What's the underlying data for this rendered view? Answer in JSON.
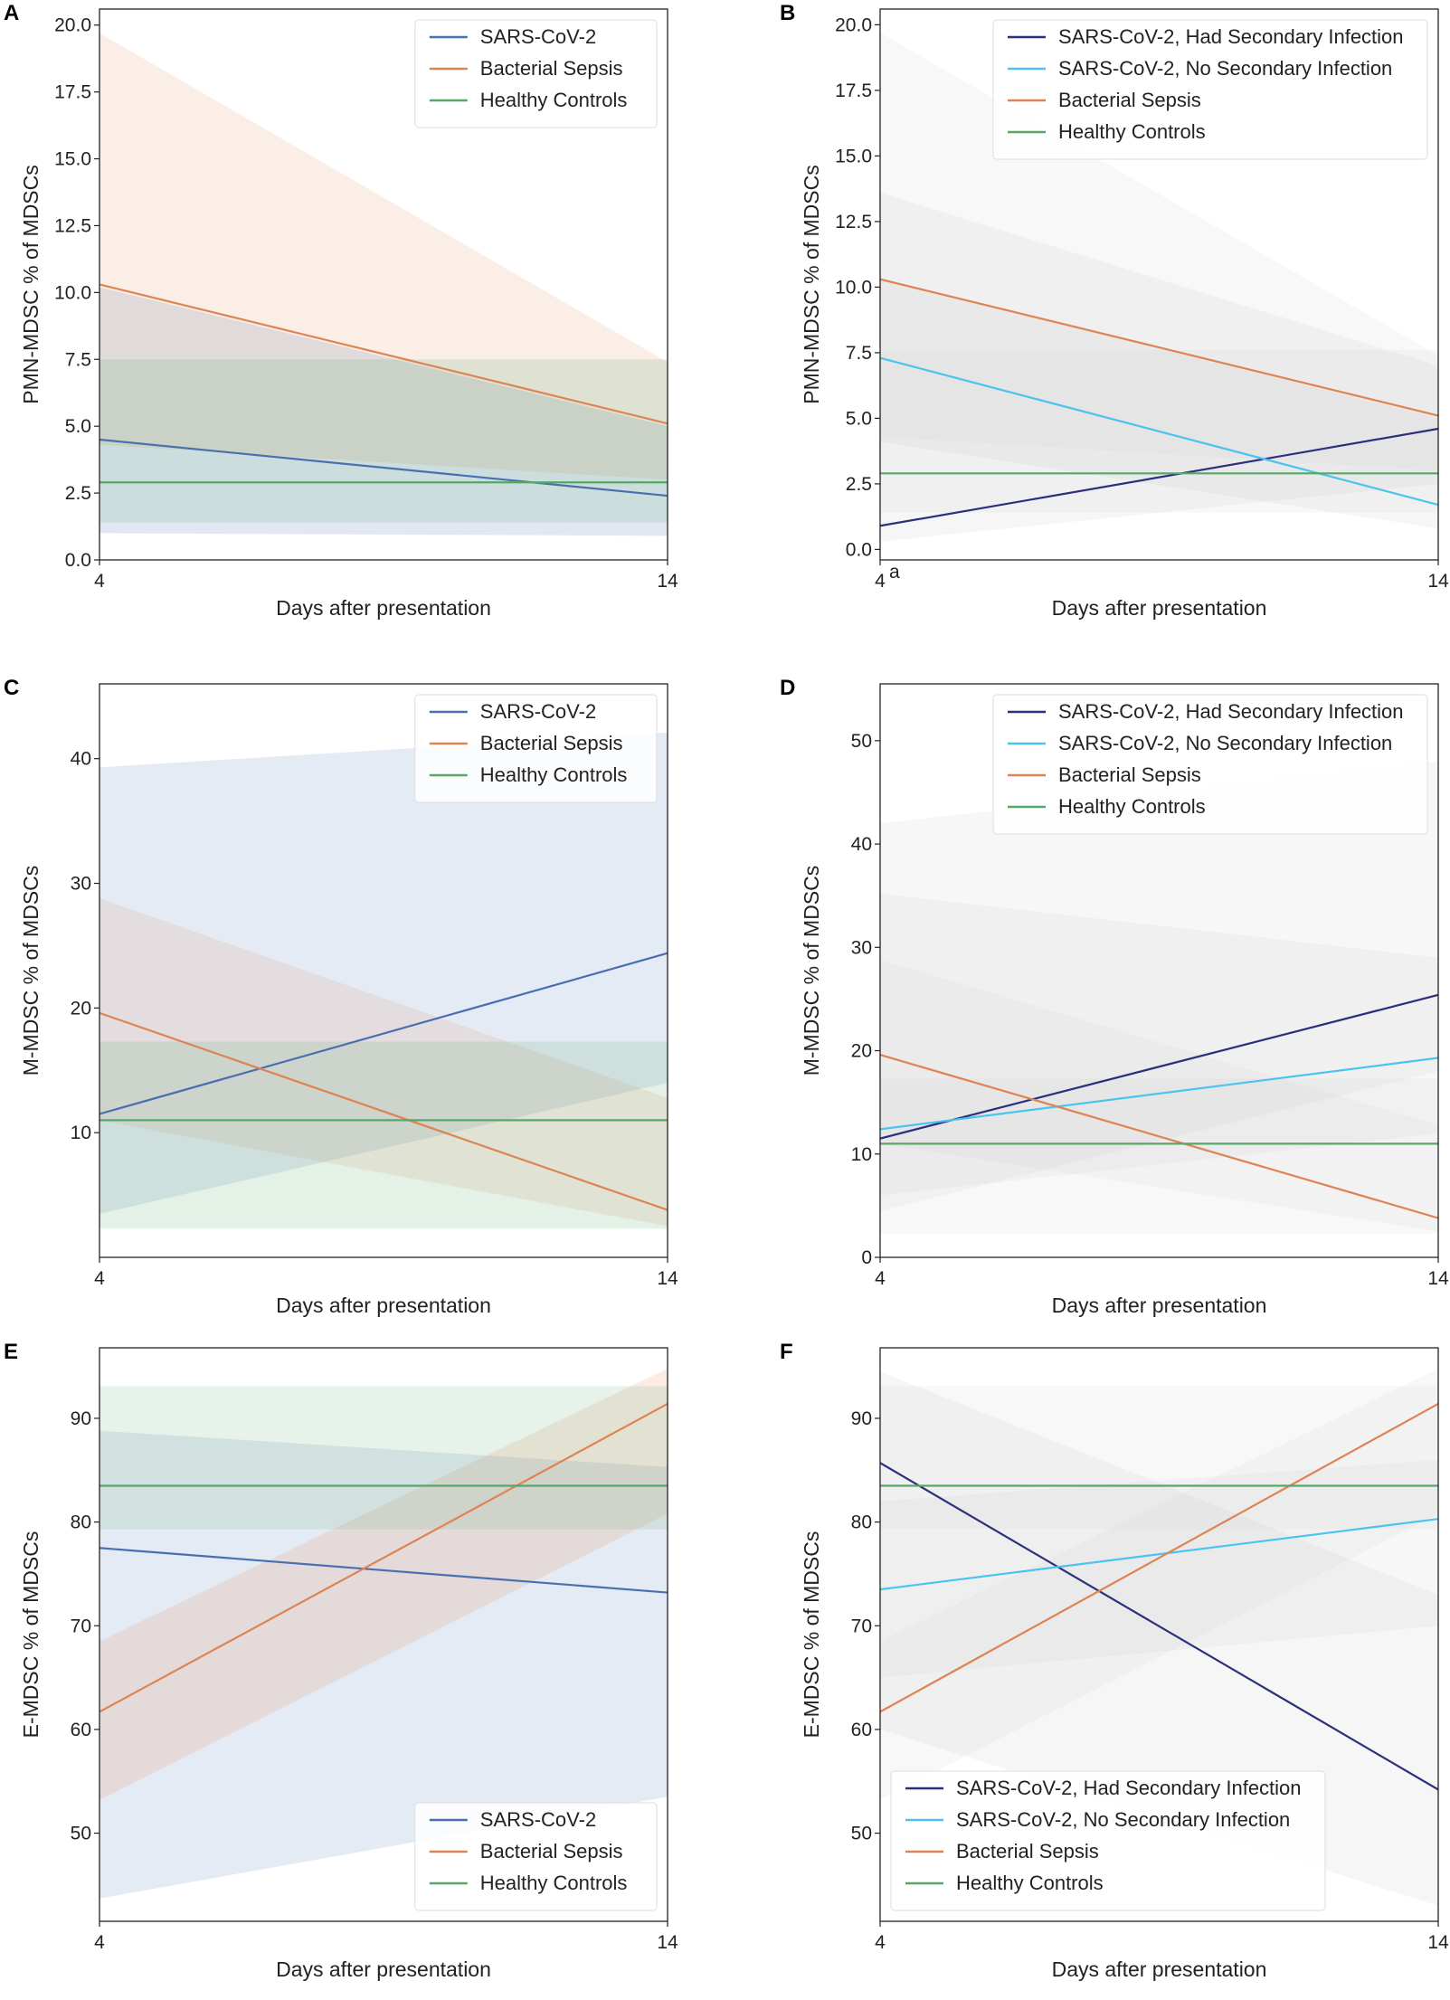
{
  "figure": {
    "colors": {
      "sars": "#4a6fb0",
      "sepsis": "#dd8452",
      "healthy": "#55a868",
      "had_secondary": "#2a2f7e",
      "no_secondary": "#4cc3ee",
      "neutral_band": "#cccccc"
    }
  },
  "chart_data": [
    {
      "panel": "A",
      "type": "line",
      "xlabel": "Days after presentation",
      "ylabel": "PMN-MDSC % of MDSCs",
      "x": [
        4,
        14
      ],
      "xticks": [
        "4",
        "14"
      ],
      "ylim": [
        0,
        20.6
      ],
      "yticks": [
        0,
        2.5,
        5,
        7.5,
        10,
        12.5,
        15,
        17.5,
        20
      ],
      "ytick_labels": [
        "0.0",
        "2.5",
        "5.0",
        "7.5",
        "10.0",
        "12.5",
        "15.0",
        "17.5",
        "20.0"
      ],
      "legend": "top-right",
      "series": [
        {
          "name": "SARS-CoV-2",
          "color": "sars",
          "values": [
            4.5,
            2.4
          ],
          "band_low": [
            1.0,
            0.9
          ],
          "band_high": [
            10.2,
            5.0
          ],
          "band_color": "sars",
          "band_opacity": 0.16
        },
        {
          "name": "Bacterial Sepsis",
          "color": "sepsis",
          "values": [
            10.3,
            5.1
          ],
          "band_low": [
            4.3,
            3.0
          ],
          "band_high": [
            19.7,
            7.4
          ],
          "band_color": "sepsis",
          "band_opacity": 0.14
        },
        {
          "name": "Healthy Controls",
          "color": "healthy",
          "values": [
            2.9,
            2.9
          ],
          "band_low": [
            1.4,
            1.4
          ],
          "band_high": [
            7.5,
            7.5
          ],
          "band_color": "healthy",
          "band_opacity": 0.16
        }
      ]
    },
    {
      "panel": "B",
      "type": "line",
      "xlabel": "Days after presentation",
      "ylabel": "PMN-MDSC % of MDSCs",
      "x": [
        4,
        14
      ],
      "xticks": [
        "4",
        "14"
      ],
      "xtick_note": "a",
      "ylim": [
        -0.4,
        20.6
      ],
      "yticks": [
        0,
        2.5,
        5,
        7.5,
        10,
        12.5,
        15,
        17.5,
        20
      ],
      "ytick_labels": [
        "0.0",
        "2.5",
        "5.0",
        "7.5",
        "10.0",
        "12.5",
        "15.0",
        "17.5",
        "20.0"
      ],
      "legend": "top-right",
      "series": [
        {
          "name": "SARS-CoV-2, Had Secondary Infection",
          "color": "had_secondary",
          "values": [
            0.9,
            4.6
          ],
          "band_low": [
            0.3,
            2.5
          ],
          "band_high": [
            13.6,
            7.0
          ],
          "band_color": "neutral_band",
          "band_opacity": 0.18
        },
        {
          "name": "SARS-CoV-2, No Secondary Infection",
          "color": "no_secondary",
          "values": [
            7.3,
            1.7
          ],
          "band_low": [
            4.1,
            0.8
          ],
          "band_high": [
            10.3,
            5.0
          ],
          "band_color": "neutral_band",
          "band_opacity": 0.18
        },
        {
          "name": "Bacterial Sepsis",
          "color": "sepsis",
          "values": [
            10.3,
            5.1
          ],
          "band_low": [
            4.3,
            3.0
          ],
          "band_high": [
            19.7,
            7.4
          ],
          "band_color": "neutral_band",
          "band_opacity": 0.14
        },
        {
          "name": "Healthy Controls",
          "color": "healthy",
          "values": [
            2.9,
            2.9
          ],
          "band_low": [
            1.4,
            1.4
          ],
          "band_high": [
            7.6,
            7.6
          ],
          "band_color": "neutral_band",
          "band_opacity": 0.14
        }
      ]
    },
    {
      "panel": "C",
      "type": "line",
      "xlabel": "Days after presentation",
      "ylabel": "M-MDSC % of MDSCs",
      "x": [
        4,
        14
      ],
      "xticks": [
        "4",
        "14"
      ],
      "ylim": [
        0,
        46
      ],
      "yticks": [
        10,
        20,
        30,
        40
      ],
      "ytick_labels": [
        "10",
        "20",
        "30",
        "40"
      ],
      "legend": "top-right",
      "series": [
        {
          "name": "SARS-CoV-2",
          "color": "sars",
          "values": [
            11.5,
            24.4
          ],
          "band_low": [
            3.5,
            14.0
          ],
          "band_high": [
            39.3,
            42.1
          ],
          "band_color": "sars",
          "band_opacity": 0.14
        },
        {
          "name": "Bacterial Sepsis",
          "color": "sepsis",
          "values": [
            19.6,
            3.8
          ],
          "band_low": [
            11.0,
            2.5
          ],
          "band_high": [
            28.8,
            12.8
          ],
          "band_color": "sepsis",
          "band_opacity": 0.13
        },
        {
          "name": "Healthy Controls",
          "color": "healthy",
          "values": [
            11.0,
            11.0
          ],
          "band_low": [
            2.3,
            2.3
          ],
          "band_high": [
            17.3,
            17.3
          ],
          "band_color": "healthy",
          "band_opacity": 0.16
        }
      ]
    },
    {
      "panel": "D",
      "type": "line",
      "xlabel": "Days after presentation",
      "ylabel": "M-MDSC % of MDSCs",
      "x": [
        4,
        14
      ],
      "xticks": [
        "4",
        "14"
      ],
      "ylim": [
        0,
        55.5
      ],
      "yticks": [
        0,
        10,
        20,
        30,
        40,
        50
      ],
      "ytick_labels": [
        "0",
        "10",
        "20",
        "30",
        "40",
        "50"
      ],
      "legend": "top-right",
      "series": [
        {
          "name": "SARS-CoV-2, Had Secondary Infection",
          "color": "had_secondary",
          "values": [
            11.5,
            25.4
          ],
          "band_low": [
            4.5,
            18.0
          ],
          "band_high": [
            42.0,
            48.0
          ],
          "band_color": "neutral_band",
          "band_opacity": 0.16
        },
        {
          "name": "SARS-CoV-2, No Secondary Infection",
          "color": "no_secondary",
          "values": [
            12.4,
            19.3
          ],
          "band_low": [
            6.0,
            12.0
          ],
          "band_high": [
            35.2,
            29.0
          ],
          "band_color": "neutral_band",
          "band_opacity": 0.16
        },
        {
          "name": "Bacterial Sepsis",
          "color": "sepsis",
          "values": [
            19.6,
            3.8
          ],
          "band_low": [
            11.0,
            2.5
          ],
          "band_high": [
            28.8,
            12.8
          ],
          "band_color": "neutral_band",
          "band_opacity": 0.14
        },
        {
          "name": "Healthy Controls",
          "color": "healthy",
          "values": [
            11.0,
            11.0
          ],
          "band_low": [
            2.3,
            2.3
          ],
          "band_high": [
            17.3,
            17.3
          ],
          "band_color": "neutral_band",
          "band_opacity": 0.14
        }
      ]
    },
    {
      "panel": "E",
      "type": "line",
      "xlabel": "Days after presentation",
      "ylabel": "E-MDSC % of MDSCs",
      "x": [
        4,
        14
      ],
      "xticks": [
        "4",
        "14"
      ],
      "ylim": [
        41.5,
        96.8
      ],
      "yticks": [
        50,
        60,
        70,
        80,
        90
      ],
      "ytick_labels": [
        "50",
        "60",
        "70",
        "80",
        "90"
      ],
      "legend": "bottom-right",
      "series": [
        {
          "name": "SARS-CoV-2",
          "color": "sars",
          "values": [
            77.5,
            73.2
          ],
          "band_low": [
            43.7,
            53.5
          ],
          "band_high": [
            88.8,
            85.3
          ],
          "band_color": "sars",
          "band_opacity": 0.14
        },
        {
          "name": "Bacterial Sepsis",
          "color": "sepsis",
          "values": [
            61.7,
            91.4
          ],
          "band_low": [
            53.2,
            80.8
          ],
          "band_high": [
            68.5,
            94.8
          ],
          "band_color": "sepsis",
          "band_opacity": 0.16
        },
        {
          "name": "Healthy Controls",
          "color": "healthy",
          "values": [
            83.5,
            83.5
          ],
          "band_low": [
            79.3,
            79.3
          ],
          "band_high": [
            93.1,
            93.1
          ],
          "band_color": "healthy",
          "band_opacity": 0.14
        }
      ]
    },
    {
      "panel": "F",
      "type": "line",
      "xlabel": "Days after presentation",
      "ylabel": "E-MDSC % of MDSCs",
      "x": [
        4,
        14
      ],
      "xticks": [
        "4",
        "14"
      ],
      "ylim": [
        41.5,
        96.8
      ],
      "yticks": [
        50,
        60,
        70,
        80,
        90
      ],
      "ytick_labels": [
        "50",
        "60",
        "70",
        "80",
        "90"
      ],
      "legend": "bottom-left",
      "series": [
        {
          "name": "SARS-CoV-2, Had Secondary Infection",
          "color": "had_secondary",
          "values": [
            85.7,
            54.2
          ],
          "band_low": [
            60.0,
            43.0
          ],
          "band_high": [
            94.5,
            73.0
          ],
          "band_color": "neutral_band",
          "band_opacity": 0.18
        },
        {
          "name": "SARS-CoV-2, No Secondary Infection",
          "color": "no_secondary",
          "values": [
            73.5,
            80.3
          ],
          "band_low": [
            65.0,
            70.0
          ],
          "band_high": [
            82.0,
            86.0
          ],
          "band_color": "neutral_band",
          "band_opacity": 0.16
        },
        {
          "name": "Bacterial Sepsis",
          "color": "sepsis",
          "values": [
            61.7,
            91.4
          ],
          "band_low": [
            53.2,
            80.8
          ],
          "band_high": [
            68.5,
            94.8
          ],
          "band_color": "neutral_band",
          "band_opacity": 0.14
        },
        {
          "name": "Healthy Controls",
          "color": "healthy",
          "values": [
            83.5,
            83.5
          ],
          "band_low": [
            79.3,
            79.3
          ],
          "band_high": [
            93.1,
            93.1
          ],
          "band_color": "neutral_band",
          "band_opacity": 0.14
        }
      ]
    }
  ]
}
